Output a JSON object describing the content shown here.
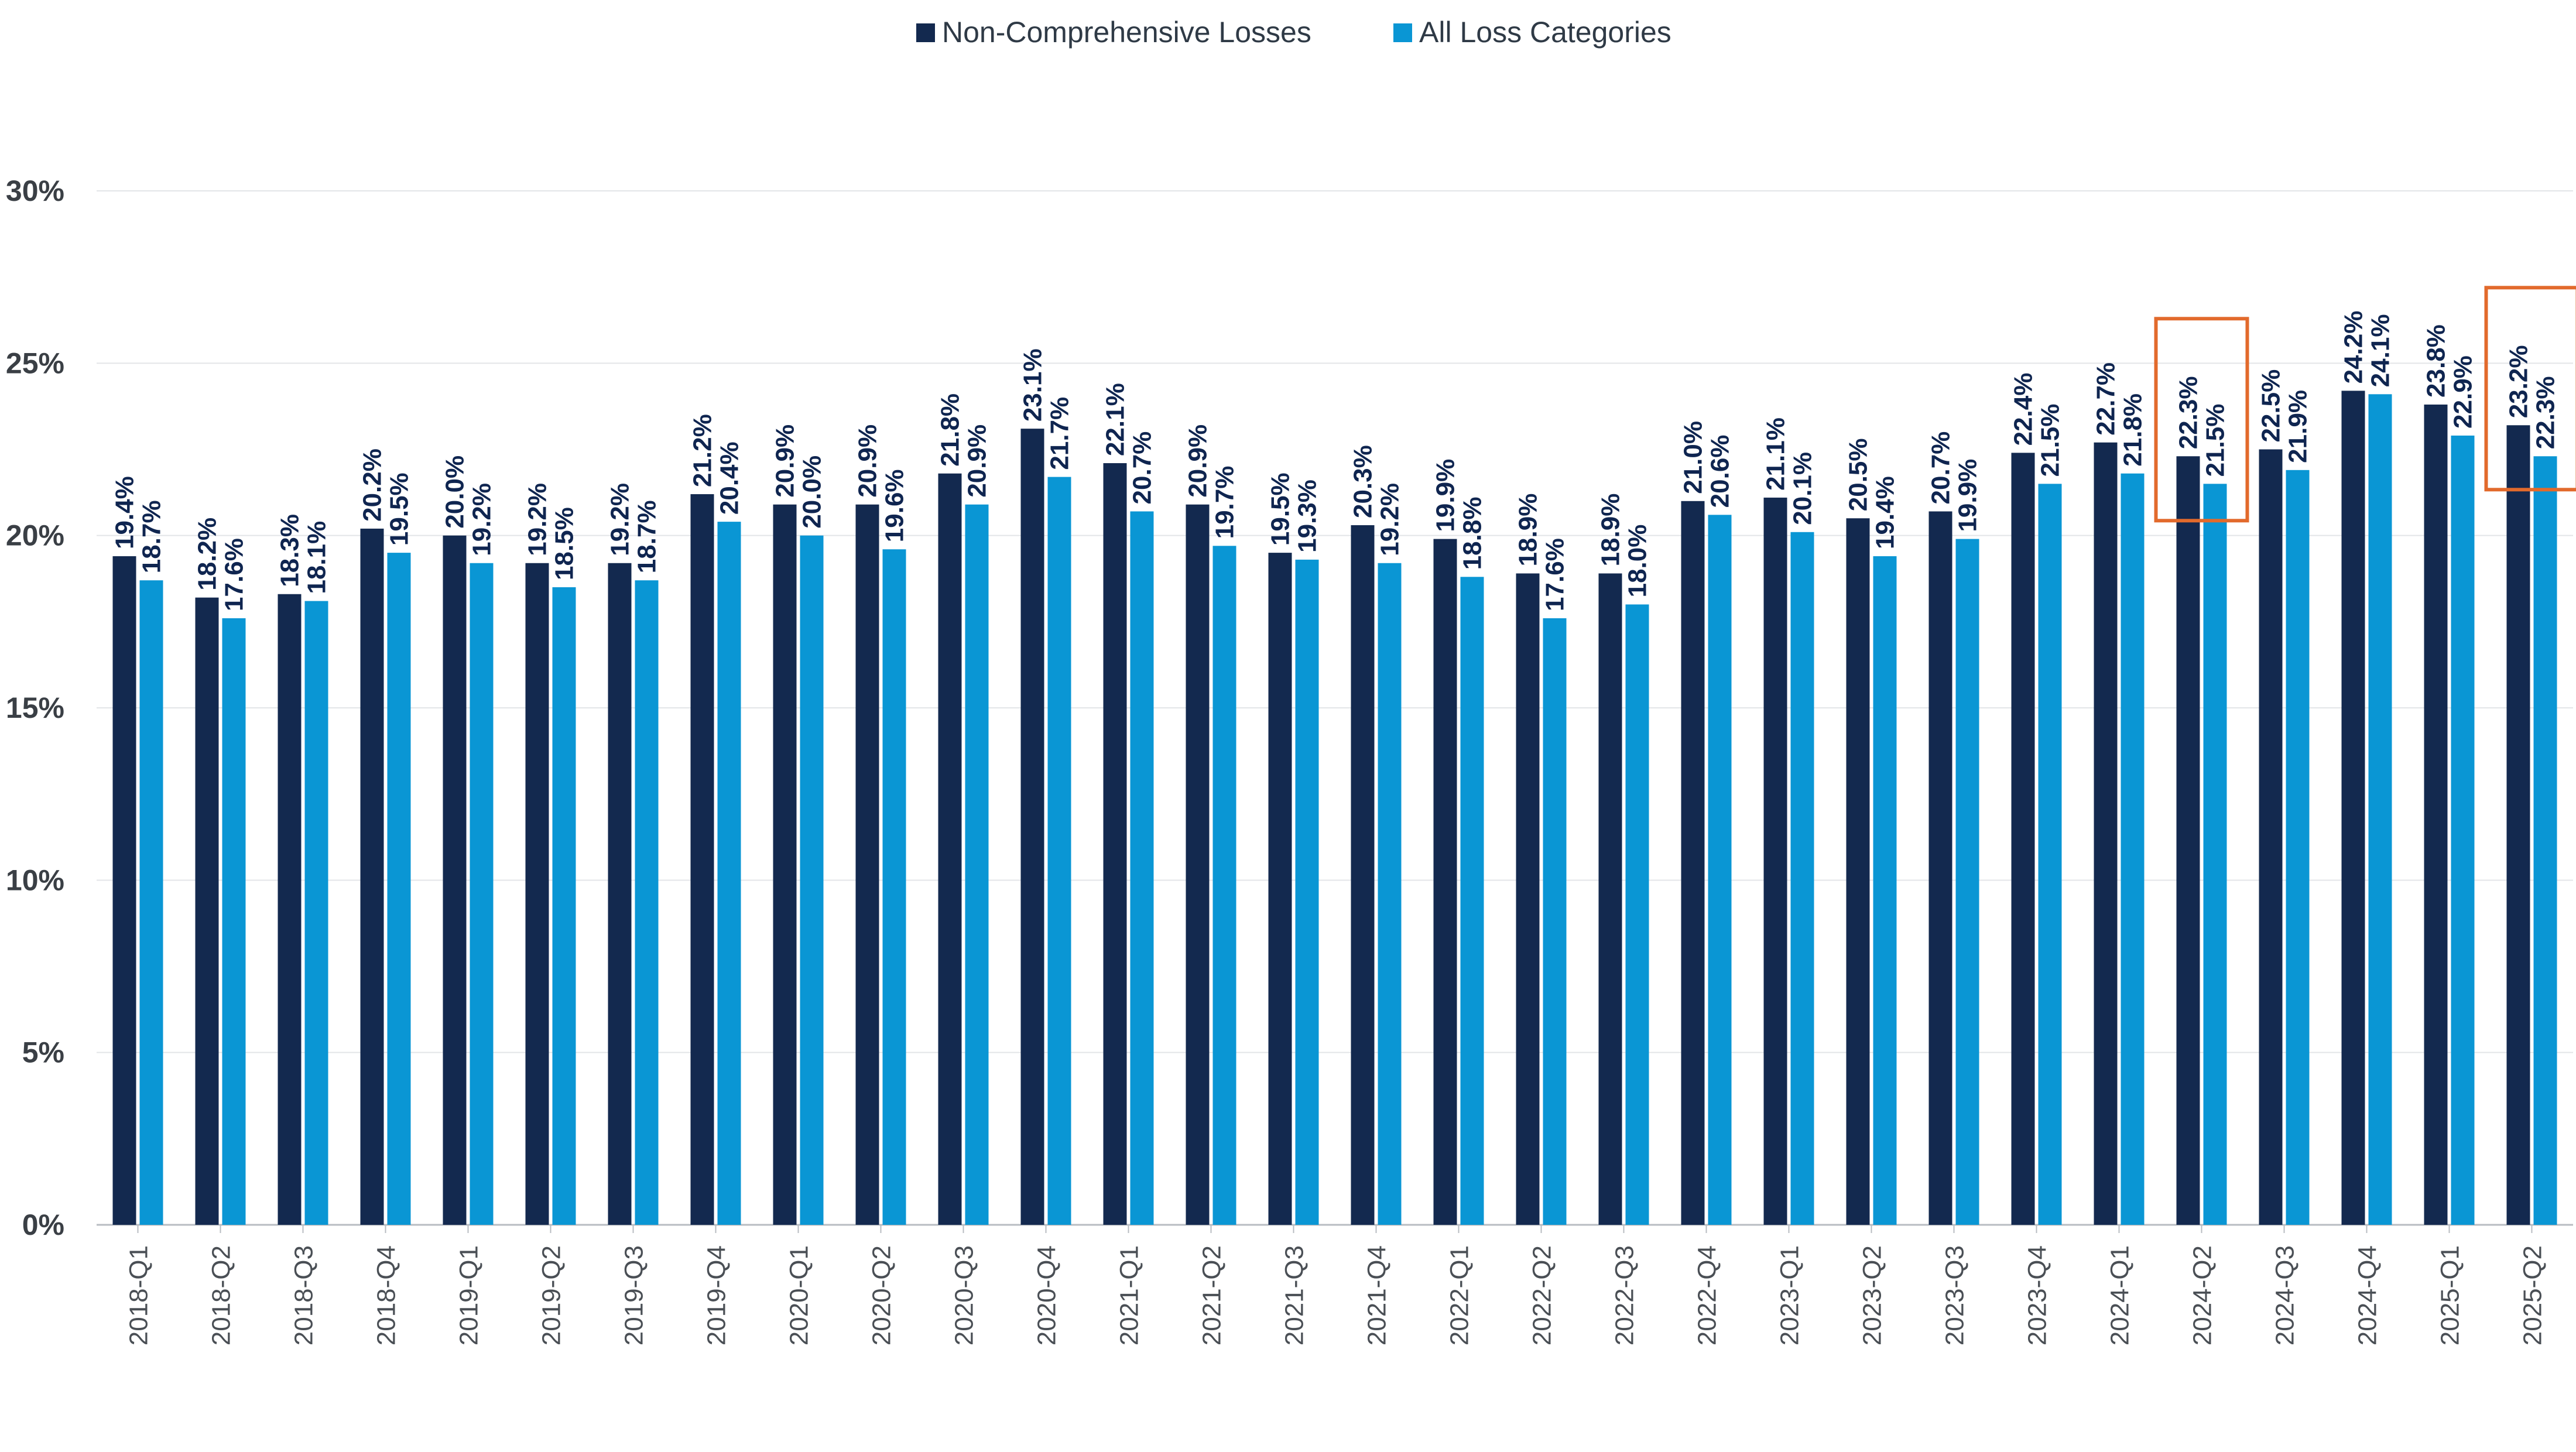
{
  "chart_data": {
    "type": "bar",
    "categories": [
      "2018-Q1",
      "2018-Q2",
      "2018-Q3",
      "2018-Q4",
      "2019-Q1",
      "2019-Q2",
      "2019-Q3",
      "2019-Q4",
      "2020-Q1",
      "2020-Q2",
      "2020-Q3",
      "2020-Q4",
      "2021-Q1",
      "2021-Q2",
      "2021-Q3",
      "2021-Q4",
      "2022-Q1",
      "2022-Q2",
      "2022-Q3",
      "2022-Q4",
      "2023-Q1",
      "2023-Q2",
      "2023-Q3",
      "2023-Q4",
      "2024-Q1",
      "2024-Q2",
      "2024-Q3",
      "2024-Q4",
      "2025-Q1",
      "2025-Q2"
    ],
    "series": [
      {
        "name": "Non-Comprehensive Losses",
        "color": "#13294f",
        "values": [
          19.4,
          18.2,
          18.3,
          20.2,
          20.0,
          19.2,
          19.2,
          21.2,
          20.9,
          20.9,
          21.8,
          23.1,
          22.1,
          20.9,
          19.5,
          20.3,
          19.9,
          18.9,
          18.9,
          21.0,
          21.1,
          20.5,
          20.7,
          22.4,
          22.7,
          22.3,
          22.5,
          24.2,
          23.8,
          23.2
        ],
        "labels": [
          "19.4%",
          "18.2%",
          "18.3%",
          "20.2%",
          "20.0%",
          "19.2%",
          "19.2%",
          "21.2%",
          "20.9%",
          "20.9%",
          "21.8%",
          "23.1%",
          "22.1%",
          "20.9%",
          "19.5%",
          "20.3%",
          "19.9%",
          "18.9%",
          "18.9%",
          "21.0%",
          "21.1%",
          "20.5%",
          "20.7%",
          "22.4%",
          "22.7%",
          "22.3%",
          "22.5%",
          "24.2%",
          "23.8%",
          "23.2%"
        ]
      },
      {
        "name": "All Loss Categories",
        "color": "#0a96d4",
        "values": [
          18.7,
          17.6,
          18.1,
          19.5,
          19.2,
          18.5,
          18.7,
          20.4,
          20.0,
          19.6,
          20.9,
          21.7,
          20.7,
          19.7,
          19.3,
          19.2,
          18.8,
          17.6,
          18.0,
          20.6,
          20.1,
          19.4,
          19.9,
          21.5,
          21.8,
          21.5,
          21.9,
          24.1,
          22.9,
          22.3
        ],
        "labels": [
          "18.7%",
          "17.6%",
          "18.1%",
          "19.5%",
          "19.2%",
          "18.5%",
          "18.7%",
          "20.4%",
          "20.0%",
          "19.6%",
          "20.9%",
          "21.7%",
          "20.7%",
          "19.7%",
          "19.3%",
          "19.2%",
          "18.8%",
          "17.6%",
          "18.0%",
          "20.6%",
          "20.1%",
          "19.4%",
          "19.9%",
          "21.5%",
          "21.8%",
          "21.5%",
          "21.9%",
          "24.1%",
          "22.9%",
          "22.3%"
        ]
      }
    ],
    "ylim": [
      0,
      30
    ],
    "yticks": [
      {
        "value": 0,
        "label": "0%"
      },
      {
        "value": 5,
        "label": "5%"
      },
      {
        "value": 10,
        "label": "10%"
      },
      {
        "value": 15,
        "label": "15%"
      },
      {
        "value": 20,
        "label": "20%"
      },
      {
        "value": 25,
        "label": "25%"
      },
      {
        "value": 30,
        "label": "30%"
      }
    ],
    "grid": true,
    "legend_position": "top-center",
    "highlighted_categories": [
      "2024-Q2",
      "2025-Q2"
    ],
    "highlight_color": "#e26a2c",
    "gridline_color": "#e3e5e8",
    "axis_color": "#b8bcc2"
  }
}
